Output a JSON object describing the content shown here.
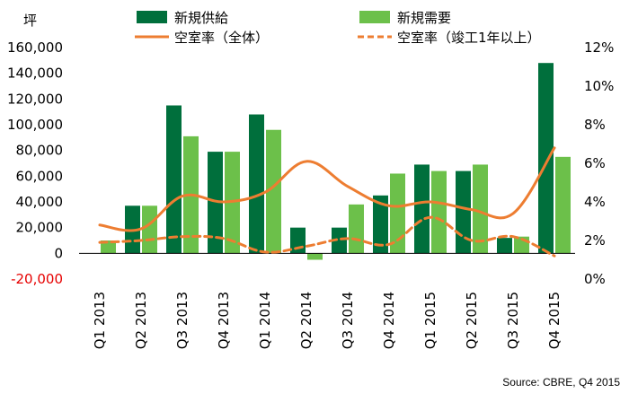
{
  "chart_data": {
    "type": "bar",
    "categories": [
      "Q1 2013",
      "Q2 2013",
      "Q3 2013",
      "Q4 2013",
      "Q1 2014",
      "Q2 2014",
      "Q3 2014",
      "Q4 2014",
      "Q1 2015",
      "Q2 2015",
      "Q3 2015",
      "Q4 2015"
    ],
    "series": [
      {
        "name": "新規供給",
        "type": "bar",
        "axis": "left",
        "color": "#006f3c",
        "values": [
          0,
          37000,
          115000,
          79000,
          108000,
          20000,
          20000,
          45000,
          69000,
          64000,
          12000,
          148000
        ]
      },
      {
        "name": "新規需要",
        "type": "bar",
        "axis": "left",
        "color": "#6cc04a",
        "values": [
          10000,
          37000,
          91000,
          79000,
          96000,
          -5000,
          38000,
          62000,
          64000,
          69000,
          13000,
          75000
        ]
      },
      {
        "name": "空室率（全体）",
        "type": "line",
        "axis": "right",
        "style": "solid",
        "color": "#ed7d31",
        "values": [
          2.8,
          2.6,
          4.3,
          4.0,
          4.5,
          6.1,
          4.8,
          3.8,
          4.0,
          3.6,
          3.4,
          6.8
        ]
      },
      {
        "name": "空室率（竣工1年以上）",
        "type": "line",
        "axis": "right",
        "style": "dashed",
        "color": "#ed7d31",
        "values": [
          1.9,
          2.0,
          2.2,
          2.1,
          1.4,
          1.7,
          2.1,
          1.8,
          3.2,
          2.0,
          2.2,
          1.2
        ]
      }
    ],
    "ylabel": "坪",
    "ylim": [
      -20000,
      160000
    ],
    "y_ticks": [
      "-20,000",
      "0",
      "20,000",
      "40,000",
      "60,000",
      "80,000",
      "100,000",
      "120,000",
      "140,000",
      "160,000"
    ],
    "y2lim": [
      0,
      12
    ],
    "y2_ticks": [
      "0%",
      "2%",
      "4%",
      "6%",
      "8%",
      "10%",
      "12%"
    ],
    "grid": false,
    "legend_position": "top",
    "colors": {
      "supply": "#006f3c",
      "demand": "#6cc04a",
      "vacancy": "#ed7d31",
      "negative_tick": "#e60000"
    }
  },
  "source": "Source:  CBRE,  Q4  2015"
}
